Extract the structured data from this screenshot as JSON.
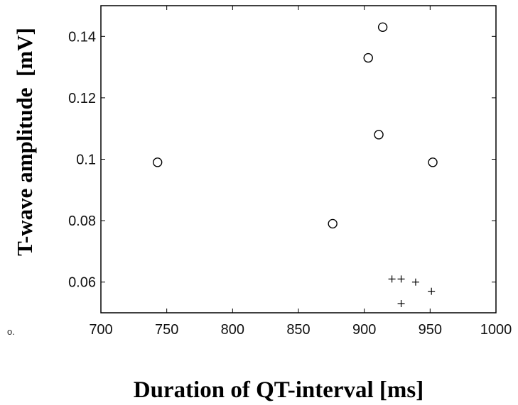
{
  "chart_data": {
    "type": "scatter",
    "title": "",
    "xlabel": "Duration of QT-interval [ms]",
    "ylabel": "T-wave amplitude  [mV]",
    "xlim": [
      700,
      1000
    ],
    "ylim": [
      0.05,
      0.15
    ],
    "xticks": [
      700,
      750,
      800,
      850,
      900,
      950,
      1000
    ],
    "yticks": [
      0.06,
      0.08,
      0.1,
      0.12,
      0.14
    ],
    "xtick_labels": [
      "700",
      "750",
      "800",
      "850",
      "900",
      "950",
      "1000"
    ],
    "ytick_labels": [
      "0.06",
      "0.08",
      "0.1",
      "0.12",
      "0.14"
    ],
    "grid": false,
    "legend": null,
    "series": [
      {
        "marker": "circle",
        "points": [
          {
            "x": 743,
            "y": 0.099
          },
          {
            "x": 876,
            "y": 0.079
          },
          {
            "x": 903,
            "y": 0.133
          },
          {
            "x": 911,
            "y": 0.108
          },
          {
            "x": 914,
            "y": 0.143
          },
          {
            "x": 952,
            "y": 0.099
          }
        ]
      },
      {
        "marker": "plus",
        "points": [
          {
            "x": 921,
            "y": 0.061
          },
          {
            "x": 928,
            "y": 0.061
          },
          {
            "x": 928,
            "y": 0.053
          },
          {
            "x": 939,
            "y": 0.06
          },
          {
            "x": 951,
            "y": 0.057
          }
        ]
      }
    ]
  },
  "stray_text": "o."
}
